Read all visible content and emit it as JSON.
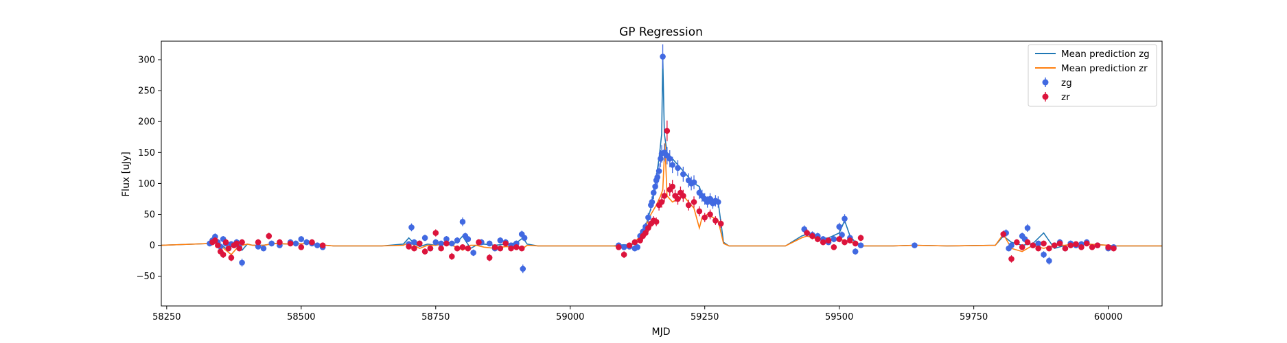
{
  "chart_data": {
    "type": "scatter",
    "title": "GP Regression",
    "xlabel": "MJD",
    "ylabel": "Flux [uJy]",
    "xlim": [
      58240,
      60100
    ],
    "ylim": [
      -98,
      330
    ],
    "xticks": [
      58250,
      58500,
      58750,
      59000,
      59250,
      59500,
      59750,
      60000
    ],
    "yticks": [
      -50,
      0,
      50,
      100,
      150,
      200,
      250,
      300
    ],
    "legend_position": "top-right",
    "colors": {
      "zg_line": "#1f77b4",
      "zr_line": "#ff7f0e",
      "zg_points": "#4169e1",
      "zr_points": "#dc143c"
    },
    "lines": [
      {
        "name": "Mean prediction zg",
        "color": "#1f77b4",
        "x": [
          58240,
          58330,
          58340,
          58350,
          58360,
          58370,
          58380,
          58390,
          58400,
          58410,
          58430,
          58450,
          58480,
          58520,
          58545,
          58560,
          58650,
          58690,
          58700,
          58710,
          58720,
          58735,
          58750,
          58765,
          58780,
          58795,
          58800,
          58805,
          58815,
          58825,
          58840,
          58860,
          58880,
          58900,
          58912,
          58920,
          58940,
          59080,
          59100,
          59110,
          59120,
          59130,
          59140,
          59150,
          59158,
          59165,
          59170,
          59172,
          59175,
          59180,
          59190,
          59200,
          59210,
          59220,
          59230,
          59240,
          59245,
          59255,
          59265,
          59275,
          59285,
          59295,
          59320,
          59400,
          59430,
          59440,
          59460,
          59480,
          59500,
          59510,
          59520,
          59530,
          59545,
          59560,
          59600,
          59640,
          59700,
          59790,
          59805,
          59820,
          59840,
          59860,
          59880,
          59900,
          59920,
          59940,
          59960,
          59980,
          60000,
          60015,
          60100
        ],
        "y": [
          0,
          3,
          8,
          2,
          -5,
          0,
          3,
          -8,
          2,
          0,
          0,
          3,
          2,
          3,
          0,
          -1,
          -1,
          2,
          12,
          3,
          -2,
          2,
          0,
          3,
          0,
          10,
          15,
          8,
          -5,
          0,
          2,
          0,
          2,
          4,
          12,
          2,
          -1,
          -1,
          1,
          0,
          3,
          10,
          30,
          60,
          100,
          140,
          180,
          302,
          180,
          150,
          140,
          130,
          120,
          110,
          100,
          95,
          80,
          75,
          72,
          70,
          5,
          -1,
          -1,
          -1,
          15,
          18,
          10,
          12,
          20,
          40,
          15,
          5,
          -1,
          -1,
          -1,
          0,
          -1,
          0,
          15,
          5,
          0,
          3,
          20,
          -5,
          0,
          3,
          2,
          1,
          0,
          -1,
          -1
        ]
      },
      {
        "name": "Mean prediction zr",
        "color": "#ff7f0e",
        "x": [
          58240,
          58330,
          58340,
          58350,
          58360,
          58370,
          58380,
          58390,
          58400,
          58410,
          58430,
          58450,
          58480,
          58520,
          58545,
          58560,
          58650,
          58690,
          58700,
          58710,
          58720,
          58735,
          58750,
          58765,
          58780,
          58795,
          58800,
          58805,
          58815,
          58825,
          58840,
          58860,
          58880,
          58900,
          58912,
          58920,
          58940,
          59080,
          59100,
          59110,
          59120,
          59130,
          59140,
          59150,
          59160,
          59168,
          59172,
          59176,
          59180,
          59190,
          59200,
          59210,
          59220,
          59230,
          59240,
          59245,
          59255,
          59265,
          59275,
          59285,
          59295,
          59320,
          59400,
          59430,
          59440,
          59460,
          59480,
          59500,
          59510,
          59520,
          59530,
          59545,
          59560,
          59600,
          59640,
          59700,
          59790,
          59805,
          59820,
          59840,
          59860,
          59880,
          59900,
          59920,
          59940,
          59960,
          59980,
          60000,
          60015,
          60100
        ],
        "y": [
          0,
          3,
          5,
          0,
          -8,
          -15,
          -5,
          0,
          2,
          0,
          0,
          3,
          2,
          3,
          0,
          -1,
          -1,
          0,
          5,
          0,
          -5,
          0,
          0,
          3,
          0,
          -5,
          -8,
          -5,
          0,
          0,
          -3,
          -5,
          -2,
          -3,
          -5,
          0,
          -1,
          -1,
          -3,
          0,
          5,
          15,
          30,
          50,
          65,
          80,
          90,
          165,
          80,
          70,
          75,
          80,
          70,
          60,
          28,
          45,
          50,
          45,
          40,
          3,
          -1,
          -1,
          -1,
          12,
          15,
          10,
          8,
          10,
          8,
          5,
          3,
          -1,
          -1,
          -1,
          0,
          -1,
          0,
          18,
          -5,
          -10,
          0,
          -5,
          0,
          0,
          3,
          2,
          1,
          0,
          -1,
          -1
        ]
      }
    ],
    "series": [
      {
        "name": "zg",
        "color": "#4169e1",
        "x": [
          58330,
          58335,
          58340,
          58345,
          58350,
          58355,
          58360,
          58365,
          58370,
          58375,
          58380,
          58385,
          58390,
          58420,
          58430,
          58445,
          58460,
          58480,
          58490,
          58500,
          58510,
          58520,
          58530,
          58540,
          58700,
          58705,
          58710,
          58720,
          58730,
          58740,
          58750,
          58760,
          58770,
          58780,
          58790,
          58800,
          58805,
          58810,
          58820,
          58835,
          58850,
          58860,
          58870,
          58880,
          58890,
          58900,
          58910,
          58912,
          58915,
          59090,
          59100,
          59110,
          59120,
          59125,
          59130,
          59135,
          59140,
          59145,
          59150,
          59152,
          59155,
          59158,
          59160,
          59162,
          59165,
          59168,
          59170,
          59172,
          59175,
          59180,
          59185,
          59190,
          59200,
          59210,
          59220,
          59225,
          59230,
          59240,
          59245,
          59250,
          59255,
          59260,
          59265,
          59270,
          59275,
          59435,
          59440,
          59450,
          59460,
          59470,
          59480,
          59490,
          59500,
          59505,
          59510,
          59520,
          59530,
          59540,
          59640,
          59810,
          59815,
          59820,
          59840,
          59845,
          59850,
          59860,
          59870,
          59880,
          59890,
          59900,
          59910,
          59920,
          59930,
          59940,
          59950,
          59960,
          59980,
          60000,
          60010
        ],
        "y": [
          3,
          8,
          14,
          5,
          -2,
          10,
          3,
          -5,
          2,
          0,
          5,
          -3,
          -28,
          -2,
          -5,
          3,
          0,
          5,
          3,
          10,
          5,
          3,
          0,
          -3,
          2,
          29,
          5,
          3,
          12,
          -5,
          5,
          3,
          10,
          3,
          8,
          38,
          15,
          10,
          -12,
          5,
          3,
          -5,
          8,
          5,
          0,
          3,
          18,
          -38,
          12,
          0,
          -3,
          -2,
          -5,
          -3,
          15,
          22,
          30,
          45,
          65,
          70,
          85,
          95,
          105,
          110,
          120,
          140,
          148,
          305,
          150,
          145,
          140,
          130,
          125,
          115,
          105,
          100,
          102,
          85,
          80,
          75,
          70,
          75,
          68,
          72,
          70,
          26,
          20,
          17,
          15,
          10,
          5,
          10,
          30,
          17,
          43,
          12,
          -10,
          0,
          0,
          20,
          -5,
          0,
          15,
          10,
          28,
          0,
          3,
          -15,
          -25,
          0,
          5,
          -5,
          3,
          0,
          2,
          5,
          0,
          -5,
          -3
        ]
      },
      {
        "name": "zr",
        "color": "#dc143c",
        "x": [
          58335,
          58340,
          58345,
          58350,
          58355,
          58360,
          58365,
          58370,
          58375,
          58380,
          58385,
          58390,
          58420,
          58440,
          58460,
          58480,
          58500,
          58520,
          58540,
          58700,
          58710,
          58720,
          58730,
          58740,
          58750,
          58760,
          58770,
          58780,
          58790,
          58800,
          58810,
          58830,
          58850,
          58860,
          58870,
          58880,
          58890,
          58900,
          58910,
          59090,
          59100,
          59110,
          59120,
          59130,
          59135,
          59140,
          59145,
          59150,
          59155,
          59160,
          59165,
          59170,
          59175,
          59180,
          59185,
          59190,
          59195,
          59200,
          59205,
          59210,
          59220,
          59230,
          59240,
          59250,
          59260,
          59270,
          59280,
          59440,
          59450,
          59460,
          59470,
          59480,
          59490,
          59500,
          59510,
          59520,
          59530,
          59540,
          59805,
          59820,
          59830,
          59840,
          59850,
          59860,
          59870,
          59880,
          59890,
          59900,
          59910,
          59920,
          59930,
          59940,
          59950,
          59960,
          59970,
          59980,
          60000,
          60010
        ],
        "y": [
          5,
          8,
          0,
          -10,
          -15,
          5,
          -5,
          -20,
          0,
          3,
          -5,
          5,
          5,
          15,
          5,
          3,
          -3,
          5,
          0,
          -2,
          -5,
          3,
          -10,
          -5,
          20,
          -5,
          3,
          -18,
          -5,
          -3,
          -5,
          5,
          -20,
          -3,
          -5,
          3,
          -5,
          -3,
          -5,
          -3,
          -15,
          0,
          5,
          8,
          15,
          20,
          28,
          35,
          40,
          38,
          65,
          70,
          80,
          185,
          90,
          95,
          80,
          75,
          85,
          80,
          65,
          70,
          55,
          45,
          50,
          40,
          35,
          20,
          15,
          10,
          5,
          8,
          -3,
          10,
          5,
          8,
          3,
          12,
          18,
          -22,
          5,
          -3,
          5,
          0,
          -5,
          3,
          -5,
          0,
          3,
          -5,
          0,
          2,
          -3,
          3,
          -3,
          0,
          -3,
          -5
        ]
      }
    ]
  },
  "legend": {
    "items": [
      "Mean prediction zg",
      "Mean prediction zr",
      "zg",
      "zr"
    ]
  }
}
